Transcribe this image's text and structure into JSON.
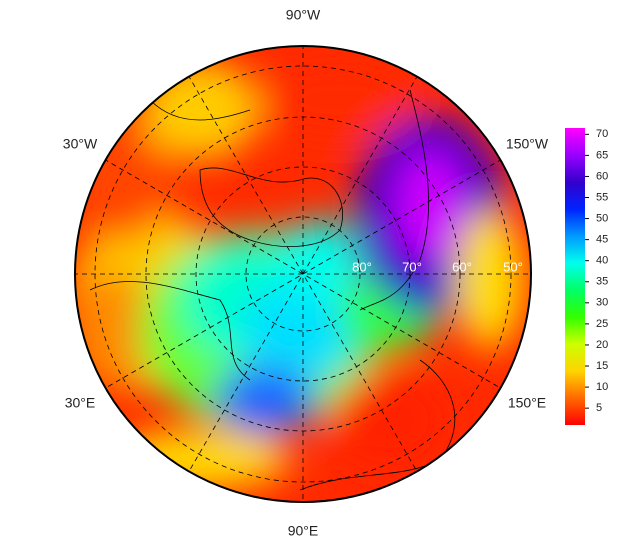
{
  "map": {
    "longitude_labels": [
      "90°W",
      "30°W",
      "150°W",
      "30°E",
      "150°E",
      "90°E"
    ],
    "latitude_labels": [
      "80°",
      "70°",
      "60°",
      "50°"
    ],
    "colorbar": {
      "range": [
        1,
        71.5
      ],
      "ticks": [
        5,
        10,
        15,
        20,
        25,
        30,
        35,
        40,
        45,
        50,
        55,
        60,
        65,
        70
      ],
      "colors": [
        "#ff0000",
        "#ff6a00",
        "#ffd400",
        "#ccff00",
        "#33ff00",
        "#00ff66",
        "#00ffee",
        "#0099ff",
        "#0022ff",
        "#3300cc",
        "#9900ff",
        "#ff00ff"
      ]
    }
  }
}
